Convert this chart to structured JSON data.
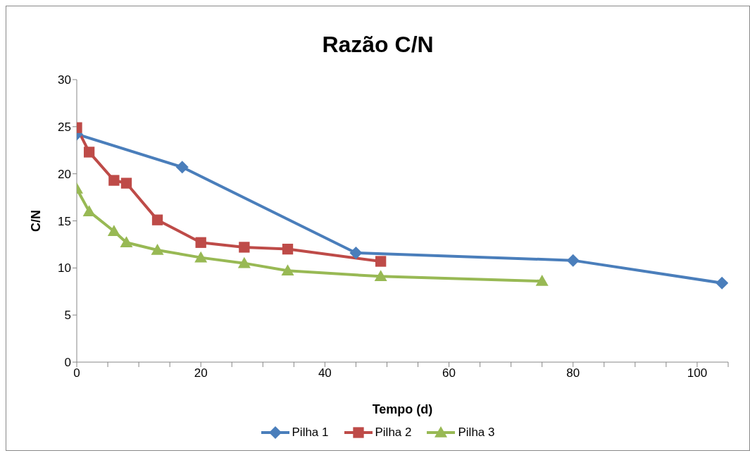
{
  "chart_data": {
    "type": "line",
    "title": "Razão C/N",
    "xlabel": "Tempo (d)",
    "ylabel": "C/N",
    "xlim": [
      0,
      105
    ],
    "xticks": [
      0,
      {
        "value": 5,
        "label": null
      },
      {
        "value": 10,
        "label": null
      },
      {
        "value": 15,
        "label": null
      },
      20,
      {
        "value": 25,
        "label": null
      },
      {
        "value": 30,
        "label": null
      },
      {
        "value": 35,
        "label": null
      },
      40,
      {
        "value": 45,
        "label": null
      },
      {
        "value": 50,
        "label": null
      },
      {
        "value": 55,
        "label": null
      },
      60,
      {
        "value": 65,
        "label": null
      },
      {
        "value": 70,
        "label": null
      },
      {
        "value": 75,
        "label": null
      },
      80,
      {
        "value": 85,
        "label": null
      },
      {
        "value": 90,
        "label": null
      },
      {
        "value": 95,
        "label": null
      },
      100,
      {
        "value": 105,
        "label": null
      }
    ],
    "ylim": [
      0,
      30
    ],
    "yticks": [
      0,
      5,
      10,
      15,
      20,
      25,
      30
    ],
    "grid": false,
    "legend": "bottom",
    "line_style": "solid",
    "series": [
      {
        "name": "Pilha 1",
        "color": "#4a7ebb",
        "marker": "diamond",
        "x": [
          0,
          17,
          45,
          80,
          104
        ],
        "values": [
          24.2,
          20.7,
          11.6,
          10.8,
          8.4
        ]
      },
      {
        "name": "Pilha 2",
        "color": "#be4b48",
        "marker": "square",
        "x": [
          0,
          2,
          6,
          8,
          13,
          20,
          27,
          34,
          49
        ],
        "values": [
          24.9,
          22.3,
          19.3,
          19.0,
          15.1,
          12.7,
          12.2,
          12.0,
          10.7
        ]
      },
      {
        "name": "Pilha 3",
        "color": "#98b954",
        "marker": "triangle",
        "x": [
          0,
          2,
          6,
          8,
          13,
          20,
          27,
          34,
          49,
          75
        ],
        "values": [
          18.4,
          16.0,
          13.9,
          12.7,
          11.9,
          11.1,
          10.5,
          9.7,
          9.1,
          8.6
        ]
      }
    ]
  }
}
